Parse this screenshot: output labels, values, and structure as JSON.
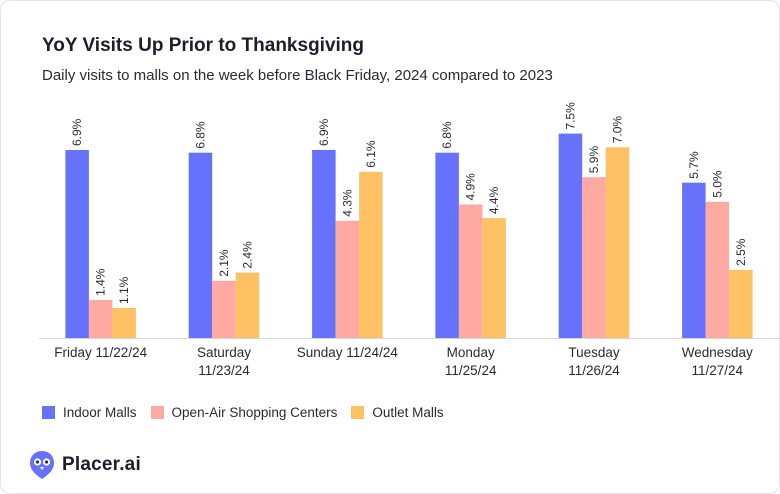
{
  "title": "YoY Visits Up Prior to Thanksgiving",
  "subtitle": "Daily visits to malls on the week before Black Friday, 2024 compared to 2023",
  "chart_data": {
    "type": "bar",
    "categories": [
      [
        "Friday 11/22/24"
      ],
      [
        "Saturday",
        "11/23/24"
      ],
      [
        "Sunday 11/24/24"
      ],
      [
        "Monday",
        "11/25/24"
      ],
      [
        "Tuesday",
        "11/26/24"
      ],
      [
        "Wednesday",
        "11/27/24"
      ]
    ],
    "series": [
      {
        "name": "Indoor Malls",
        "color": "#6672fb",
        "values": [
          6.9,
          6.8,
          6.9,
          6.8,
          7.5,
          5.7
        ],
        "labels": [
          "6.9%",
          "6.8%",
          "6.9%",
          "6.8%",
          "7.5%",
          "5.7%"
        ]
      },
      {
        "name": "Open-Air Shopping Centers",
        "color": "#fea9a1",
        "values": [
          1.4,
          2.1,
          4.3,
          4.9,
          5.9,
          5.0
        ],
        "labels": [
          "1.4%",
          "2.1%",
          "4.3%",
          "4.9%",
          "5.9%",
          "5.0%"
        ]
      },
      {
        "name": "Outlet Malls",
        "color": "#fec265",
        "values": [
          1.1,
          2.4,
          6.1,
          4.4,
          7.0,
          2.5
        ],
        "labels": [
          "1.1%",
          "2.4%",
          "6.1%",
          "4.4%",
          "7.0%",
          "2.5%"
        ]
      }
    ],
    "ylim": [
      0,
      8
    ],
    "grid": false,
    "legend": "bottom-left"
  },
  "brand": {
    "name": "Placer.ai",
    "color": "#6672fb",
    "icon": "placer-owl-icon"
  }
}
